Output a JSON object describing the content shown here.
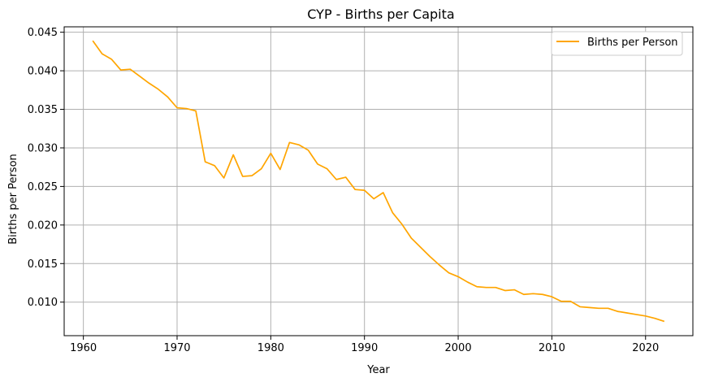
{
  "chart_data": {
    "type": "line",
    "title": "CYP - Births per Capita",
    "xlabel": "Year",
    "ylabel": "Births per Person",
    "xlim": [
      1957.95,
      2025.05
    ],
    "ylim": [
      0.00565,
      0.0457
    ],
    "grid": true,
    "legend_position": "top-right",
    "xticks": [
      1960,
      1970,
      1980,
      1990,
      2000,
      2010,
      2020
    ],
    "xtick_labels": [
      "1960",
      "1970",
      "1980",
      "1990",
      "2000",
      "2010",
      "2020"
    ],
    "yticks": [
      0.01,
      0.015,
      0.02,
      0.025,
      0.03,
      0.035,
      0.04,
      0.045
    ],
    "ytick_labels": [
      "0.010",
      "0.015",
      "0.020",
      "0.025",
      "0.030",
      "0.035",
      "0.040",
      "0.045"
    ],
    "series": [
      {
        "name": "Births per Person",
        "color": "#ffa500",
        "x": [
          1961,
          1962,
          1963,
          1964,
          1965,
          1966,
          1967,
          1968,
          1969,
          1970,
          1971,
          1972,
          1973,
          1974,
          1975,
          1976,
          1977,
          1978,
          1979,
          1980,
          1981,
          1982,
          1983,
          1984,
          1985,
          1986,
          1987,
          1988,
          1989,
          1990,
          1991,
          1992,
          1993,
          1994,
          1995,
          1996,
          1997,
          1998,
          1999,
          2000,
          2001,
          2002,
          2003,
          2004,
          2005,
          2006,
          2007,
          2008,
          2009,
          2010,
          2011,
          2012,
          2013,
          2014,
          2015,
          2016,
          2017,
          2018,
          2019,
          2020,
          2021,
          2022
        ],
        "y": [
          0.0439,
          0.0422,
          0.0415,
          0.0401,
          0.0402,
          0.0393,
          0.0384,
          0.0376,
          0.0366,
          0.0352,
          0.0351,
          0.0348,
          0.0282,
          0.0277,
          0.0261,
          0.0291,
          0.0263,
          0.0264,
          0.0273,
          0.0293,
          0.0272,
          0.0307,
          0.0304,
          0.0297,
          0.0279,
          0.0273,
          0.0259,
          0.0262,
          0.0246,
          0.0245,
          0.0234,
          0.0242,
          0.0216,
          0.0201,
          0.0183,
          0.0171,
          0.0159,
          0.0148,
          0.0138,
          0.0133,
          0.0126,
          0.012,
          0.0119,
          0.0119,
          0.0115,
          0.0116,
          0.011,
          0.0111,
          0.011,
          0.0107,
          0.0101,
          0.0101,
          0.0094,
          0.0093,
          0.0092,
          0.0092,
          0.0088,
          0.0086,
          0.0084,
          0.0082,
          0.0079,
          0.0075
        ]
      }
    ]
  }
}
